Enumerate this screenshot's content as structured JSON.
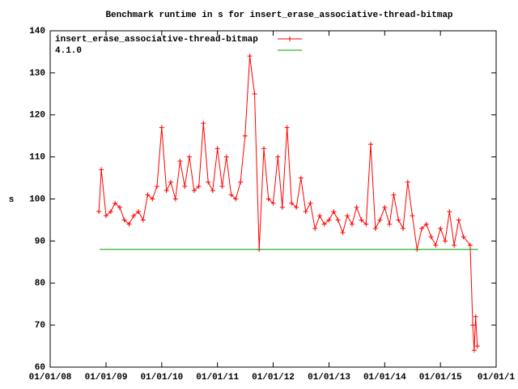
{
  "chart_data": {
    "type": "line",
    "title": "Benchmark runtime in s for insert_erase_associative-thread-bitmap",
    "ylabel": "s",
    "legend": "top left",
    "xlim": [
      "2008-01-01",
      "2016-01-01"
    ],
    "xticks": [
      {
        "value": "2008-01-01",
        "label": "01/01/08"
      },
      {
        "value": "2009-01-01",
        "label": "01/01/09"
      },
      {
        "value": "2010-01-01",
        "label": "01/01/10"
      },
      {
        "value": "2011-01-01",
        "label": "01/01/11"
      },
      {
        "value": "2012-01-01",
        "label": "01/01/12"
      },
      {
        "value": "2013-01-01",
        "label": "01/01/13"
      },
      {
        "value": "2014-01-01",
        "label": "01/01/14"
      },
      {
        "value": "2015-01-01",
        "label": "01/01/15"
      },
      {
        "value": "2016-01-01",
        "label": "01/01/1"
      }
    ],
    "ylim": [
      60,
      140
    ],
    "yticks": [
      60,
      70,
      80,
      90,
      100,
      110,
      120,
      130,
      140
    ],
    "series": [
      {
        "name": "insert_erase_associative-thread-bitmap",
        "color": "#ff0000",
        "marker": "+",
        "x": [
          "2008-11-15",
          "2008-12-01",
          "2009-01-01",
          "2009-02-01",
          "2009-03-01",
          "2009-04-01",
          "2009-05-01",
          "2009-06-01",
          "2009-07-01",
          "2009-08-01",
          "2009-09-01",
          "2009-10-01",
          "2009-11-01",
          "2009-12-01",
          "2010-01-01",
          "2010-02-01",
          "2010-03-01",
          "2010-04-01",
          "2010-05-01",
          "2010-06-01",
          "2010-07-01",
          "2010-08-01",
          "2010-09-01",
          "2010-10-01",
          "2010-11-01",
          "2010-12-01",
          "2011-01-01",
          "2011-02-01",
          "2011-03-01",
          "2011-04-01",
          "2011-05-01",
          "2011-06-01",
          "2011-07-01",
          "2011-08-01",
          "2011-09-01",
          "2011-10-01",
          "2011-11-01",
          "2011-12-01",
          "2012-01-01",
          "2012-02-01",
          "2012-03-01",
          "2012-04-01",
          "2012-05-01",
          "2012-06-01",
          "2012-07-01",
          "2012-08-01",
          "2012-09-01",
          "2012-10-01",
          "2012-11-01",
          "2012-12-01",
          "2013-01-01",
          "2013-02-01",
          "2013-03-01",
          "2013-04-01",
          "2013-05-01",
          "2013-06-01",
          "2013-07-01",
          "2013-08-01",
          "2013-09-01",
          "2013-10-01",
          "2013-11-01",
          "2013-12-01",
          "2014-01-01",
          "2014-02-01",
          "2014-03-01",
          "2014-04-01",
          "2014-05-01",
          "2014-06-01",
          "2014-07-01",
          "2014-08-01",
          "2014-09-01",
          "2014-10-01",
          "2014-11-01",
          "2014-12-01",
          "2015-01-01",
          "2015-02-01",
          "2015-03-01",
          "2015-04-01",
          "2015-05-01",
          "2015-06-01",
          "2015-07-15",
          "2015-08-01",
          "2015-08-10",
          "2015-08-20",
          "2015-08-31"
        ],
        "values": [
          97,
          107,
          96,
          97,
          99,
          98,
          95,
          94,
          96,
          97,
          95,
          101,
          100,
          103,
          117,
          102,
          104,
          100,
          109,
          103,
          110,
          102,
          103,
          118,
          104,
          102,
          112,
          103,
          110,
          101,
          100,
          104,
          115,
          134,
          125,
          88,
          112,
          100,
          99,
          110,
          98,
          117,
          99,
          98,
          105,
          97,
          99,
          93,
          96,
          94,
          95,
          97,
          95,
          92,
          96,
          94,
          98,
          95,
          94,
          113,
          93,
          95,
          98,
          94,
          101,
          95,
          93,
          104,
          96,
          88,
          93,
          94,
          91,
          89,
          93,
          90,
          97,
          89,
          95,
          91,
          89,
          70,
          64,
          72,
          65
        ]
      },
      {
        "name": "4.1.0",
        "color": "#00a000",
        "x": [
          "2008-11-20",
          "2015-09-05"
        ],
        "values": [
          88,
          88
        ]
      }
    ]
  }
}
